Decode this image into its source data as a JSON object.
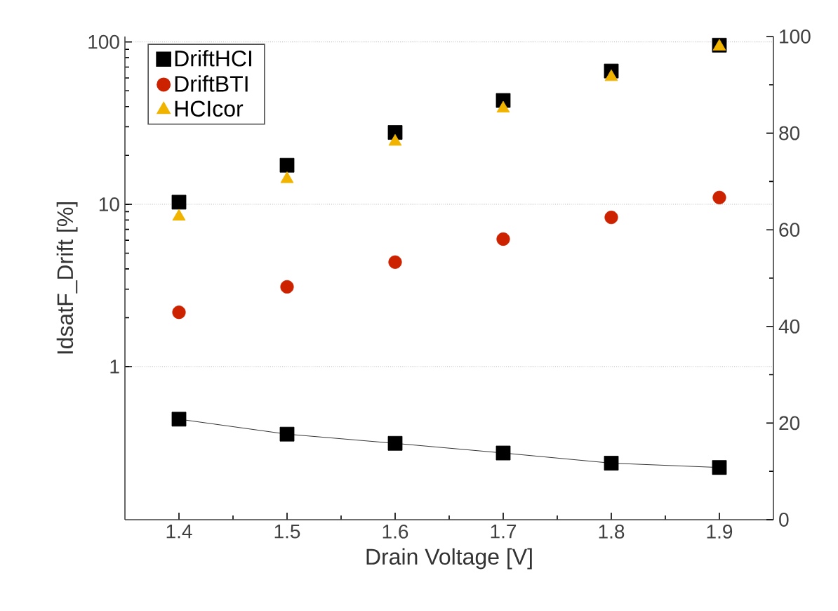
{
  "chart_data": {
    "type": "scatter",
    "xlabel": "Drain Voltage [V]",
    "ylabel": "IdsatF_Drift [%]",
    "x": [
      1.4,
      1.5,
      1.6,
      1.7,
      1.8,
      1.9
    ],
    "xlim": [
      1.35,
      1.95
    ],
    "xticks": [
      1.4,
      1.5,
      1.6,
      1.7,
      1.8,
      1.9
    ],
    "ylim": [
      0.114,
      108
    ],
    "yticks": [
      1,
      10,
      100
    ],
    "y2lim": [
      0,
      100
    ],
    "y2ticks": [
      0,
      20,
      40,
      60,
      80,
      100
    ],
    "log": "y",
    "grid": "y",
    "legend": "top left",
    "series": [
      {
        "name": "DriftHCI",
        "color": "#000000",
        "marker": "square",
        "values": [
          10.3,
          17.4,
          27.7,
          43.6,
          66.2,
          95.5
        ]
      },
      {
        "name": "DriftBTI",
        "color": "#cc2200",
        "marker": "circle",
        "values": [
          2.16,
          3.1,
          4.4,
          6.1,
          8.3,
          11.0
        ]
      },
      {
        "name": "HCIcor",
        "color": "#f0b400",
        "marker": "triangle",
        "values": [
          8.4,
          14.3,
          24.3,
          38.9,
          60.8,
          93.6
        ]
      },
      {
        "type": "line",
        "axis": "y2",
        "color": "#000000",
        "marker": "square",
        "values": [
          20.8,
          17.7,
          15.8,
          13.8,
          11.7,
          10.8
        ]
      }
    ]
  }
}
